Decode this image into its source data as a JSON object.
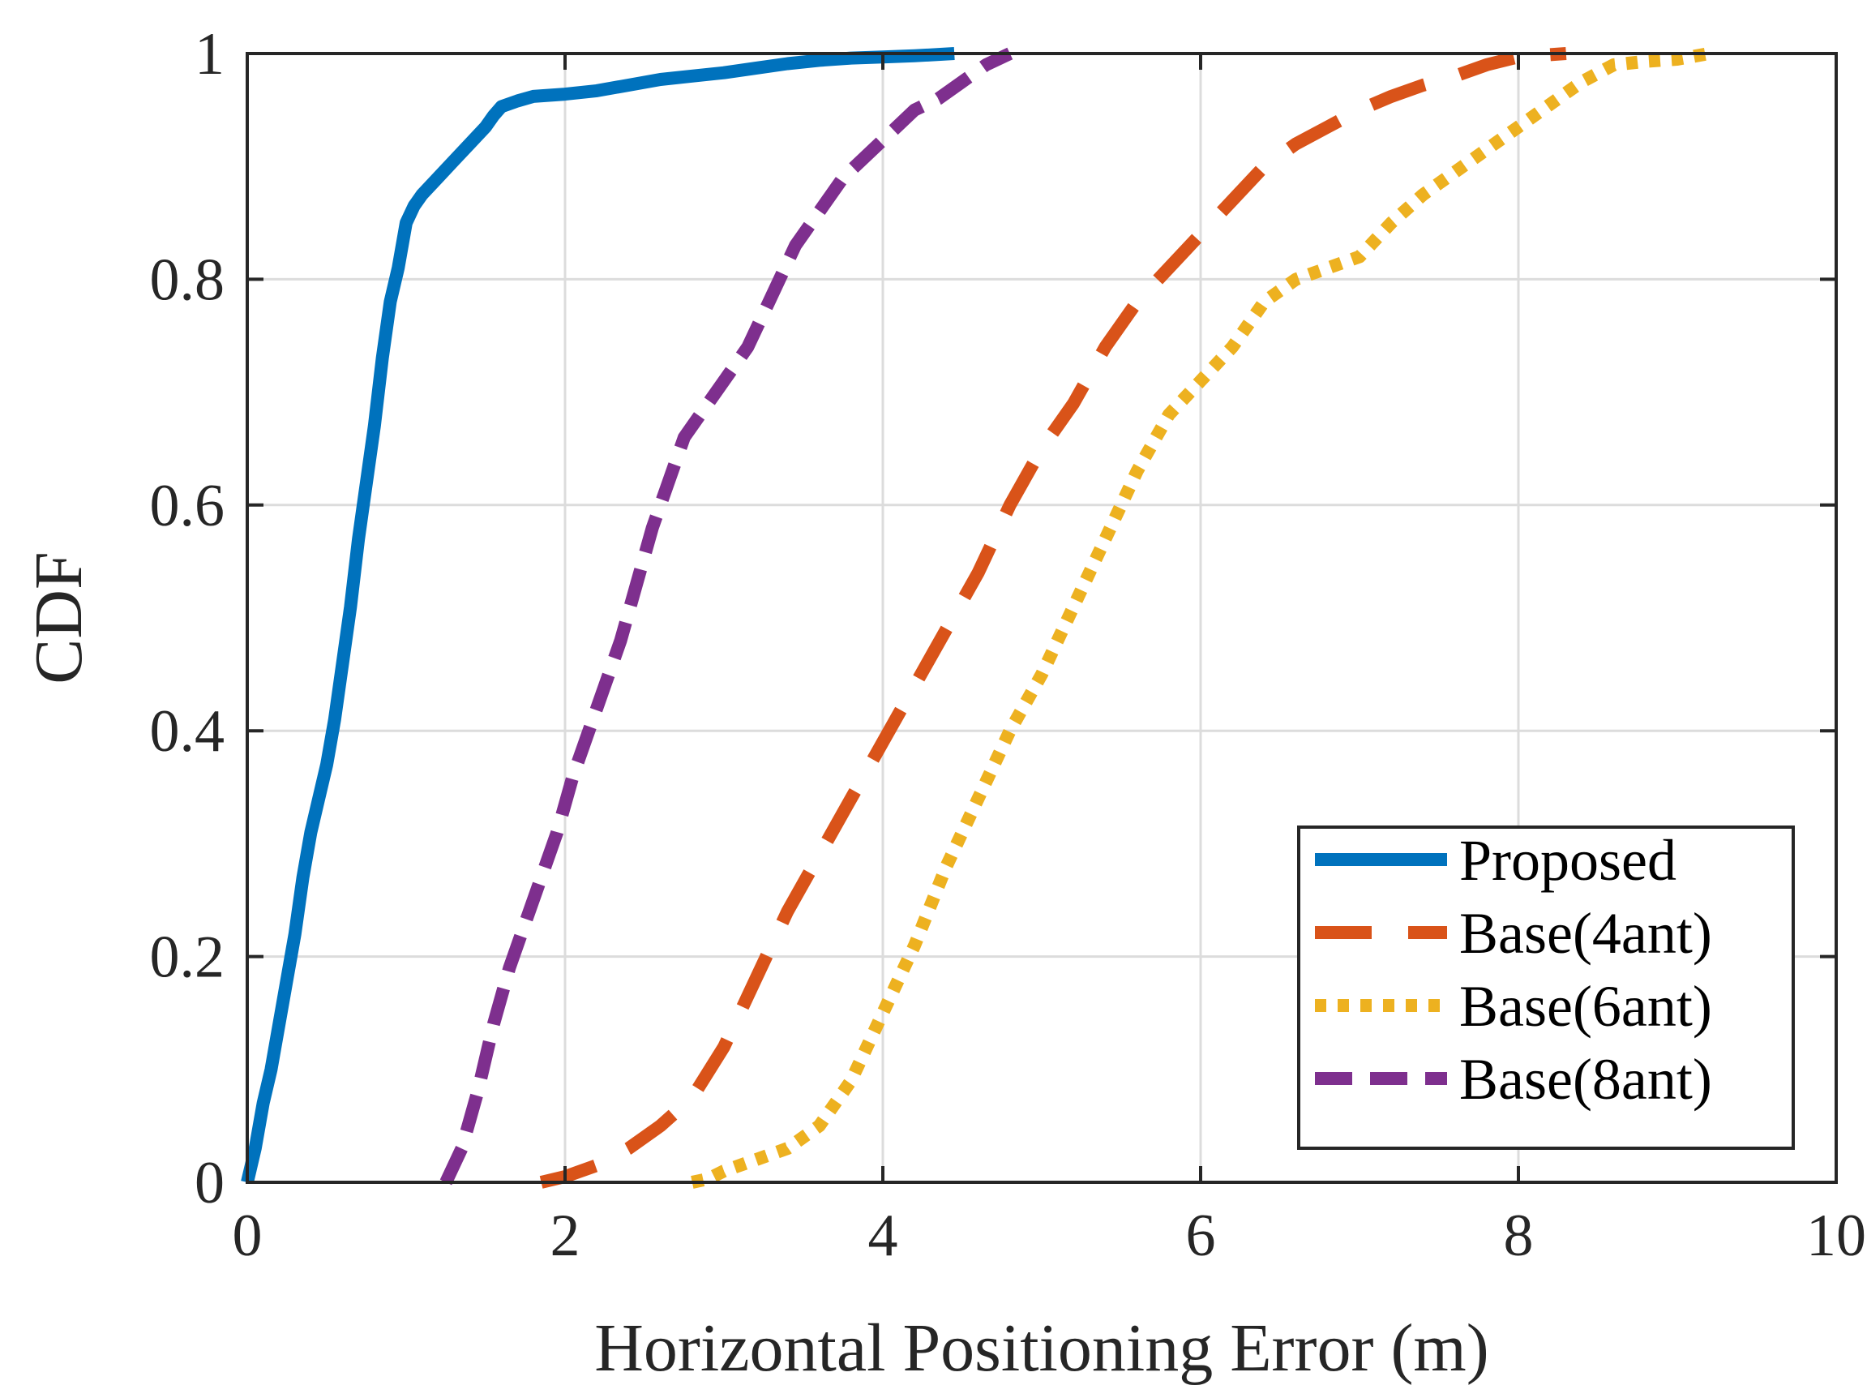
{
  "chart_data": {
    "type": "line",
    "title": "",
    "xlabel": "Horizontal Positioning Error (m)",
    "ylabel": "CDF",
    "xlim": [
      0,
      10
    ],
    "ylim": [
      0,
      1
    ],
    "xticks": [
      0,
      2,
      4,
      6,
      8,
      10
    ],
    "xtick_labels": [
      "0",
      "2",
      "4",
      "6",
      "8",
      "10"
    ],
    "yticks": [
      0,
      0.2,
      0.4,
      0.6,
      0.8,
      1
    ],
    "ytick_labels": [
      "0",
      "0.2",
      "0.4",
      "0.6",
      "0.8",
      "1"
    ],
    "grid": true,
    "legend_position": "bottom-right",
    "series": [
      {
        "name": "Proposed",
        "color": "#0072BD",
        "style": "solid",
        "x": [
          0.0,
          0.05,
          0.1,
          0.15,
          0.2,
          0.25,
          0.3,
          0.35,
          0.4,
          0.45,
          0.5,
          0.55,
          0.6,
          0.65,
          0.7,
          0.75,
          0.8,
          0.85,
          0.9,
          0.95,
          1.0,
          1.05,
          1.1,
          1.2,
          1.3,
          1.4,
          1.5,
          1.55,
          1.6,
          1.7,
          1.8,
          2.0,
          2.2,
          2.4,
          2.6,
          2.8,
          3.0,
          3.2,
          3.4,
          3.6,
          3.8,
          4.0,
          4.2,
          4.45
        ],
        "y": [
          0.0,
          0.03,
          0.07,
          0.1,
          0.14,
          0.18,
          0.22,
          0.27,
          0.31,
          0.34,
          0.37,
          0.41,
          0.46,
          0.51,
          0.57,
          0.62,
          0.67,
          0.73,
          0.78,
          0.81,
          0.85,
          0.865,
          0.875,
          0.89,
          0.905,
          0.92,
          0.935,
          0.945,
          0.953,
          0.958,
          0.962,
          0.964,
          0.967,
          0.972,
          0.977,
          0.98,
          0.983,
          0.987,
          0.991,
          0.994,
          0.996,
          0.997,
          0.998,
          1.0
        ]
      },
      {
        "name": "Base(4ant)",
        "color": "#D95319",
        "style": "dashed",
        "x": [
          1.85,
          2.0,
          2.2,
          2.4,
          2.6,
          2.8,
          3.0,
          3.2,
          3.4,
          3.6,
          3.8,
          4.0,
          4.2,
          4.4,
          4.6,
          4.8,
          5.0,
          5.2,
          5.4,
          5.6,
          5.8,
          6.0,
          6.2,
          6.4,
          6.6,
          6.8,
          7.0,
          7.2,
          7.4,
          7.6,
          7.8,
          8.0,
          8.3
        ],
        "y": [
          0.0,
          0.005,
          0.015,
          0.03,
          0.05,
          0.075,
          0.12,
          0.18,
          0.24,
          0.29,
          0.34,
          0.39,
          0.44,
          0.49,
          0.54,
          0.6,
          0.65,
          0.69,
          0.74,
          0.78,
          0.81,
          0.84,
          0.87,
          0.9,
          0.92,
          0.935,
          0.95,
          0.962,
          0.972,
          0.98,
          0.99,
          0.997,
          1.0
        ]
      },
      {
        "name": "Base(6ant)",
        "color": "#EDB120",
        "style": "dotted",
        "x": [
          2.8,
          2.9,
          3.0,
          3.2,
          3.4,
          3.6,
          3.8,
          4.0,
          4.2,
          4.4,
          4.6,
          4.8,
          5.0,
          5.2,
          5.4,
          5.6,
          5.8,
          6.0,
          6.2,
          6.4,
          6.6,
          6.8,
          7.0,
          7.2,
          7.4,
          7.6,
          7.8,
          8.0,
          8.2,
          8.4,
          8.6,
          8.8,
          9.0,
          9.2
        ],
        "y": [
          0.0,
          0.003,
          0.01,
          0.02,
          0.03,
          0.05,
          0.09,
          0.15,
          0.21,
          0.28,
          0.34,
          0.4,
          0.45,
          0.51,
          0.57,
          0.63,
          0.68,
          0.71,
          0.74,
          0.78,
          0.8,
          0.81,
          0.82,
          0.85,
          0.875,
          0.895,
          0.915,
          0.935,
          0.955,
          0.975,
          0.99,
          0.993,
          0.995,
          1.0
        ]
      },
      {
        "name": "Base(8ant)",
        "color": "#7E2F8E",
        "style": "dash-dot",
        "x": [
          1.25,
          1.35,
          1.45,
          1.55,
          1.65,
          1.75,
          1.85,
          1.95,
          2.05,
          2.15,
          2.25,
          2.35,
          2.45,
          2.55,
          2.65,
          2.75,
          2.85,
          2.95,
          3.05,
          3.15,
          3.25,
          3.35,
          3.45,
          3.6,
          3.75,
          3.9,
          4.05,
          4.2,
          4.35,
          4.5,
          4.65,
          4.8
        ],
        "y": [
          0.0,
          0.03,
          0.08,
          0.14,
          0.19,
          0.23,
          0.27,
          0.31,
          0.36,
          0.4,
          0.44,
          0.48,
          0.53,
          0.58,
          0.62,
          0.66,
          0.68,
          0.7,
          0.72,
          0.74,
          0.77,
          0.8,
          0.83,
          0.86,
          0.89,
          0.91,
          0.93,
          0.95,
          0.96,
          0.975,
          0.99,
          1.0
        ]
      }
    ]
  }
}
